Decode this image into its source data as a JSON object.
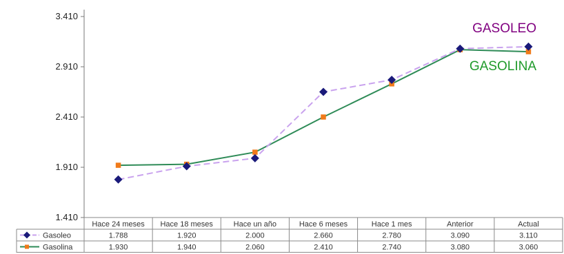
{
  "chart_data": {
    "type": "line",
    "categories": [
      "Hace 24 meses",
      "Hace 18 meses",
      "Hace un año",
      "Hace 6 meses",
      "Hace 1 mes",
      "Anterior",
      "Actual"
    ],
    "series": [
      {
        "name": "Gasoleo",
        "values": [
          1788,
          1920,
          2000,
          2660,
          2780,
          3090,
          3110
        ],
        "labels": [
          "1.788",
          "1.920",
          "2.000",
          "2.660",
          "2.780",
          "3.090",
          "3.110"
        ],
        "color": "#c9a2ee",
        "marker_color": "#1a1a7a",
        "marker": "diamond",
        "dashed": true
      },
      {
        "name": "Gasolina",
        "values": [
          1930,
          1940,
          2060,
          2410,
          2740,
          3080,
          3060
        ],
        "labels": [
          "1.930",
          "1.940",
          "2.060",
          "2.410",
          "2.740",
          "3.080",
          "3.060"
        ],
        "color": "#2e8b57",
        "marker_color": "#f07a1a",
        "marker": "square",
        "dashed": false
      }
    ],
    "ylim": [
      1410,
      3410
    ],
    "yticks": [
      1410,
      1910,
      2410,
      2910,
      3410
    ],
    "ytick_labels": [
      "1.410",
      "1.910",
      "2.410",
      "2.910",
      "3.410"
    ],
    "annotations": [
      {
        "text": "GASOLEO",
        "color": "#800080"
      },
      {
        "text": "GASOLINA",
        "color": "#1f9a2a"
      }
    ],
    "data_table": true
  }
}
